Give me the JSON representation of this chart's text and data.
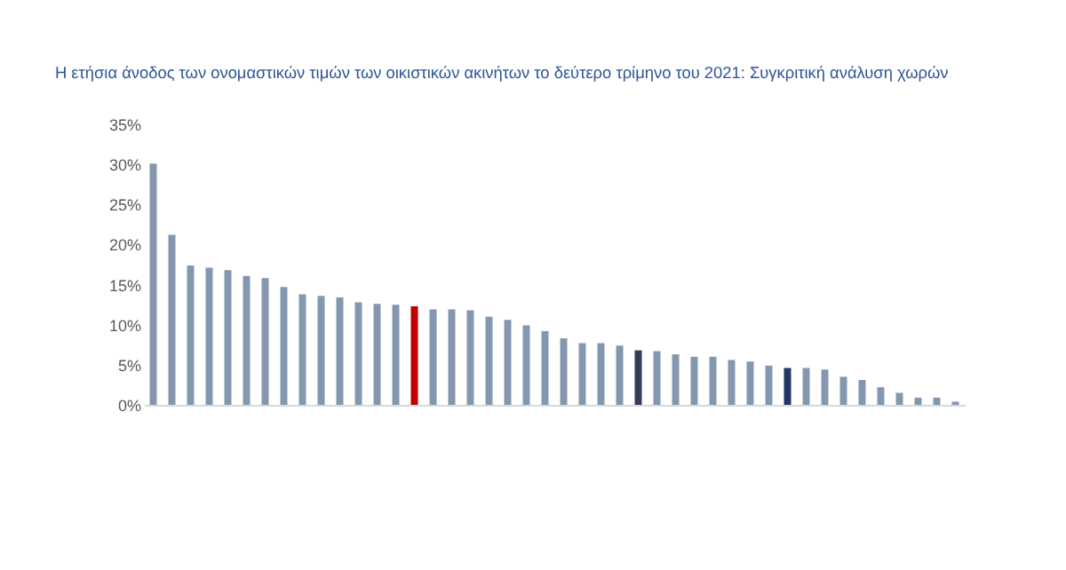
{
  "chart_data": {
    "type": "bar",
    "title": "Η ετήσια άνοδος των ονομαστικών τιμών των οικιστικών ακινήτων το δεύτερο τρίμηνο του 2021: Συγκριτική ανάλυση χωρών",
    "categories": [
      null,
      null,
      null,
      null,
      null,
      null,
      null,
      null,
      null,
      null,
      null,
      null,
      null,
      null,
      null,
      null,
      null,
      null,
      null,
      null,
      null,
      null,
      null,
      null,
      null,
      null,
      null,
      null,
      null,
      null,
      null,
      null,
      null,
      null,
      null,
      null,
      null,
      null,
      null,
      null,
      null,
      null,
      null,
      null
    ],
    "values": [
      30.1,
      21.2,
      17.4,
      17.1,
      16.8,
      16.1,
      15.8,
      14.7,
      13.8,
      13.6,
      13.4,
      12.8,
      12.6,
      12.5,
      12.3,
      11.9,
      11.9,
      11.8,
      11.0,
      10.6,
      9.9,
      9.2,
      8.3,
      7.7,
      7.7,
      7.4,
      6.8,
      6.7,
      6.3,
      6.0,
      6.0,
      5.6,
      5.4,
      4.9,
      4.6,
      4.6,
      4.4,
      3.5,
      3.1,
      2.2,
      1.5,
      0.9,
      0.9,
      0.4
    ],
    "colors": [
      "#8497b0",
      "#8497b0",
      "#8497b0",
      "#8497b0",
      "#8497b0",
      "#8497b0",
      "#8497b0",
      "#8497b0",
      "#8497b0",
      "#8497b0",
      "#8497b0",
      "#8497b0",
      "#8497b0",
      "#8497b0",
      "#c00000",
      "#8497b0",
      "#8497b0",
      "#8497b0",
      "#8497b0",
      "#8497b0",
      "#8497b0",
      "#8497b0",
      "#8497b0",
      "#8497b0",
      "#8497b0",
      "#8497b0",
      "#333f50",
      "#8497b0",
      "#8497b0",
      "#8497b0",
      "#8497b0",
      "#8497b0",
      "#8497b0",
      "#8497b0",
      "#1f3864",
      "#8497b0",
      "#8497b0",
      "#8497b0",
      "#8497b0",
      "#8497b0",
      "#8497b0",
      "#8497b0",
      "#8497b0",
      "#8497b0"
    ],
    "ylim": [
      0,
      35
    ],
    "yticks": [
      {
        "value": 0,
        "label": "0%"
      },
      {
        "value": 5,
        "label": "5%"
      },
      {
        "value": 10,
        "label": "10%"
      },
      {
        "value": 15,
        "label": "15%"
      },
      {
        "value": 20,
        "label": "20%"
      },
      {
        "value": 25,
        "label": "25%"
      },
      {
        "value": 30,
        "label": "30%"
      },
      {
        "value": 35,
        "label": "35%"
      }
    ],
    "tick_labels": "y"
  }
}
